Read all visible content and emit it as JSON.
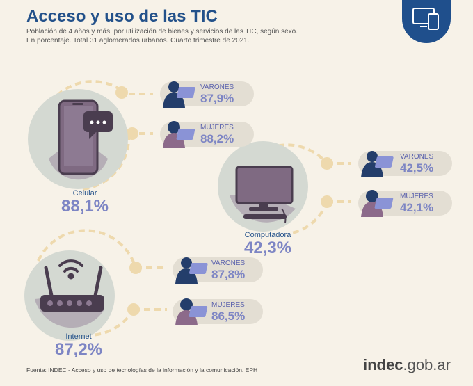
{
  "header": {
    "title": "Acceso y uso de las TIC",
    "subtitle_line1": "Población de 4 años y más, por utilización de bienes y servicios de las TIC, según sexo.",
    "subtitle_line2": "En porcentaje. Total 31 aglomerados urbanos. Cuarto trimestre de 2021."
  },
  "categories": [
    {
      "label": "Celular",
      "value": "88,1%",
      "varones": {
        "label": "VARONES",
        "value": "87,9%"
      },
      "mujeres": {
        "label": "MUJERES",
        "value": "88,2%"
      }
    },
    {
      "label": "Computadora",
      "value": "42,3%",
      "varones": {
        "label": "VARONES",
        "value": "42,5%"
      },
      "mujeres": {
        "label": "MUJERES",
        "value": "42,1%"
      }
    },
    {
      "label": "Internet",
      "value": "87,2%",
      "varones": {
        "label": "VARONES",
        "value": "87,8%"
      },
      "mujeres": {
        "label": "MUJERES",
        "value": "86,5%"
      }
    }
  ],
  "footer": {
    "source": "Fuente:  INDEC - Acceso y uso de tecnologías de la información y la comunicación. EPH",
    "logo_bold": "indec",
    "logo_rest": ".gob.ar"
  },
  "colors": {
    "title": "#23518a",
    "value": "#7d85c4",
    "circle": "#d4d9d2",
    "device": "#7f6a82",
    "dash": "#eed9ad"
  },
  "icons": [
    "smartphone-icon",
    "chat-bubble-icon",
    "monitor-icon",
    "router-icon",
    "wifi-icon",
    "man-laptop-icon",
    "woman-laptop-icon",
    "devices-icon"
  ]
}
